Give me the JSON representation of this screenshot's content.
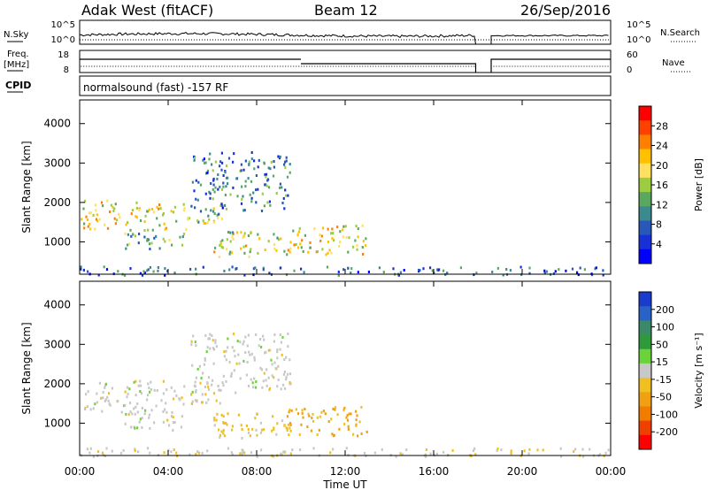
{
  "header": {
    "station": "Adak West (fitACF)",
    "beam": "Beam 12",
    "date": "26/Sep/2016"
  },
  "left_labels": {
    "nsky": "N.Sky",
    "freq": "Freq.",
    "freq_unit": "[MHz]",
    "cpid": "CPID"
  },
  "right_labels": {
    "nsearch": "N.Search",
    "nave": "Nave"
  },
  "cpid_text": "normalsound (fast) -157 RF",
  "noise_panel": {
    "left_ticks": [
      "10^5",
      "10^0"
    ],
    "right_ticks": [
      "10^5",
      "10^0"
    ]
  },
  "freq_panel": {
    "left_ticks": [
      "18",
      "8"
    ],
    "right_ticks": [
      "60",
      "0"
    ]
  },
  "power_colorbar": {
    "label": "Power [dB]",
    "ticks": [
      "28",
      "24",
      "20",
      "16",
      "12",
      "8",
      "4"
    ],
    "colors": [
      "#ff0000",
      "#ff4000",
      "#ff8000",
      "#ffc000",
      "#ffe060",
      "#9ccc40",
      "#5aa860",
      "#3a8a90",
      "#2858b8",
      "#1830d8",
      "#0000ff"
    ]
  },
  "velocity_colorbar": {
    "label": "Velocity [m s⁻¹]",
    "ticks": [
      "200",
      "100",
      "50",
      "15",
      "-15",
      "-50",
      "-100",
      "-200"
    ],
    "colors": [
      "#1a3ccc",
      "#2a62c8",
      "#3a8a6a",
      "#2e9a3a",
      "#6cd23c",
      "#c8c8c8",
      "#f0c020",
      "#f0a010",
      "#f07c00",
      "#f04000",
      "#ff0000"
    ]
  },
  "chart_data": {
    "type": "heatmap",
    "title": "Adak West (fitACF) Beam 12 26/Sep/2016",
    "xlabel": "Time UT",
    "ylabel": "Slant Range [km]",
    "x_ticks": [
      "00:00",
      "04:00",
      "08:00",
      "12:00",
      "16:00",
      "20:00",
      "00:00"
    ],
    "xlim_hours": [
      0,
      24
    ],
    "ylim_km": [
      180,
      4600
    ],
    "y_ticks": [
      1000,
      2000,
      3000,
      4000
    ],
    "gap_hours": [
      17.9,
      18.6
    ],
    "freq_mhz_steps": [
      {
        "from": 0,
        "to": 10,
        "value": 14
      },
      {
        "from": 10,
        "to": 17.9,
        "value": 12
      },
      {
        "from": 18.6,
        "to": 24,
        "value": 14
      }
    ],
    "echo_regions": [
      {
        "t0": 0.0,
        "t1": 3.9,
        "r0": 1300,
        "r1": 2100,
        "power_db": 18,
        "velocity": 0
      },
      {
        "t0": 2.0,
        "t1": 4.8,
        "r0": 850,
        "r1": 1350,
        "power_db": 12,
        "velocity": 0
      },
      {
        "t0": 4.0,
        "t1": 6.5,
        "r0": 1500,
        "r1": 2000,
        "power_db": 14,
        "velocity": -20
      },
      {
        "t0": 5.0,
        "t1": 9.5,
        "r0": 1800,
        "r1": 3300,
        "power_db": 8,
        "velocity": 0
      },
      {
        "t0": 6.0,
        "t1": 9.5,
        "r0": 650,
        "r1": 1300,
        "power_db": 16,
        "velocity": -40
      },
      {
        "t0": 9.2,
        "t1": 13.0,
        "r0": 700,
        "r1": 1450,
        "power_db": 18,
        "velocity": -80
      },
      {
        "t0": 0.0,
        "t1": 24.0,
        "r0": 180,
        "r1": 400,
        "power_db": 6,
        "velocity": -15
      }
    ]
  }
}
